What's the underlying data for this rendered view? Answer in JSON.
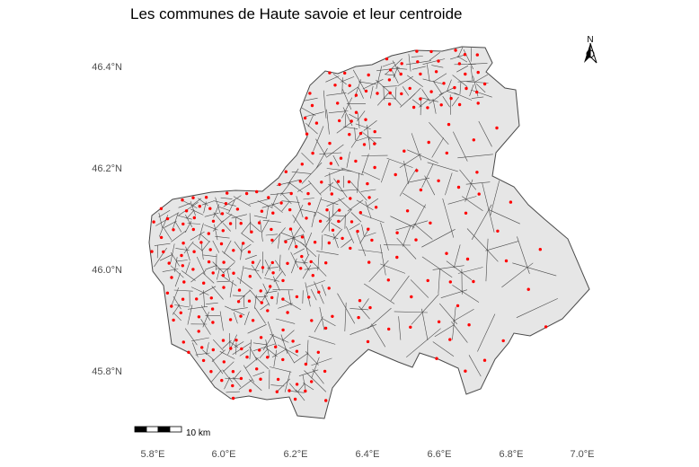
{
  "title": "Les communes de Haute savoie et leur centroide",
  "colors": {
    "fill": "#e6e6e6",
    "border": "#4a4a4a",
    "centroid": "#ff0000",
    "axis_text": "#4d4d4d"
  },
  "axes": {
    "lat_ticks": [
      "46.4°N",
      "46.2°N",
      "46.0°N",
      "45.8°N"
    ],
    "lon_ticks": [
      "5.8°E",
      "6.0°E",
      "6.2°E",
      "6.4°E",
      "6.6°E",
      "6.8°E",
      "7.0°E"
    ]
  },
  "scale_bar": {
    "label": "10 km"
  },
  "north_arrow": {
    "label": "N",
    "icon": "north-arrow-icon"
  }
}
